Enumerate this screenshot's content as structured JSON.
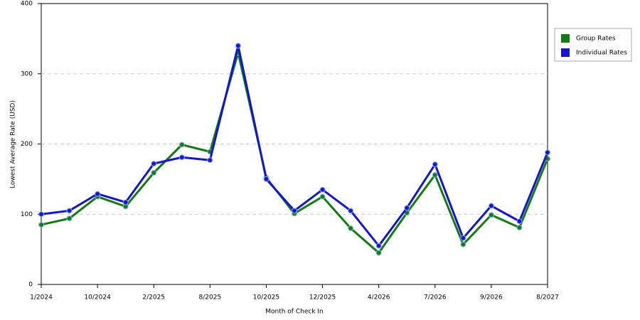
{
  "chart_data": {
    "type": "line",
    "x_label": "Month of Check In",
    "y_label": "Lowest Average Rate (USD)",
    "categories": [
      "1/2024",
      null,
      "10/2024",
      null,
      "2/2025",
      null,
      "8/2025",
      null,
      "10/2025",
      null,
      "12/2025",
      null,
      "4/2026",
      null,
      "7/2026",
      null,
      "9/2026",
      null,
      "8/2027"
    ],
    "series": [
      {
        "name": "Group Rates",
        "color": "#157a15",
        "values": [
          85,
          94,
          125,
          111,
          159,
          199,
          189,
          330,
          152,
          101,
          125,
          80,
          45,
          102,
          156,
          57,
          99,
          81,
          179
        ]
      },
      {
        "name": "Individual Rates",
        "color": "#1515cc",
        "values": [
          100,
          105,
          129,
          117,
          172,
          181,
          177,
          340,
          150,
          105,
          135,
          105,
          55,
          109,
          171,
          66,
          112,
          90,
          188
        ]
      }
    ],
    "ylim": [
      0,
      400
    ],
    "yticks": [
      0,
      100,
      200,
      300,
      400
    ],
    "grid": true,
    "legend": "right"
  }
}
